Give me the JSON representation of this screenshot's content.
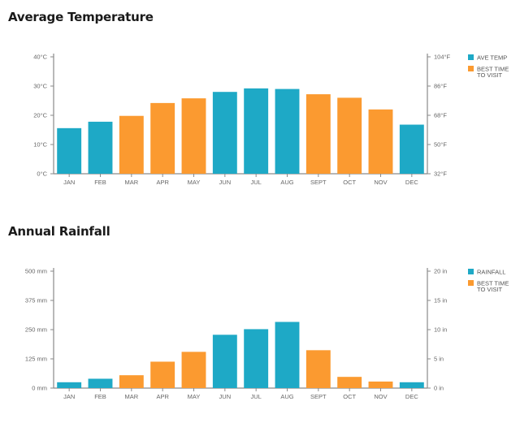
{
  "colors": {
    "primary": "#1ea9c6",
    "best": "#fb9a30",
    "axis": "#8a8a8a",
    "text": "#666666"
  },
  "chart_data": [
    {
      "type": "bar",
      "title": "Average Temperature",
      "categories": [
        "JAN",
        "FEB",
        "MAR",
        "APR",
        "MAY",
        "JUN",
        "JUL",
        "AUG",
        "SEPT",
        "OCT",
        "NOV",
        "DEC"
      ],
      "values": [
        15.6,
        17.8,
        19.8,
        24.2,
        25.8,
        28.0,
        29.2,
        29.0,
        27.2,
        26.0,
        22.0,
        16.8
      ],
      "best_time": [
        false,
        false,
        true,
        true,
        true,
        false,
        false,
        false,
        true,
        true,
        true,
        false
      ],
      "ylim": [
        0,
        40
      ],
      "left_ticks": [
        "40°C",
        "30°C",
        "20°C",
        "10°C",
        "0°C"
      ],
      "left_tick_values": [
        40,
        30,
        20,
        10,
        0
      ],
      "right_ticks": [
        "104°F",
        "86°F",
        "68°F",
        "50°F",
        "32°F"
      ],
      "legend": [
        {
          "label": "AVE TEMP",
          "color": "#1ea9c6"
        },
        {
          "label": "BEST TIME",
          "label2": "TO VISIT",
          "color": "#fb9a30"
        }
      ],
      "legend_position": "top-right",
      "grid": false
    },
    {
      "type": "bar",
      "title": "Annual Rainfall",
      "categories": [
        "JAN",
        "FEB",
        "MAR",
        "APR",
        "MAY",
        "JUN",
        "JUL",
        "AUG",
        "SEPT",
        "OCT",
        "NOV",
        "DEC"
      ],
      "values": [
        25,
        40,
        55,
        113,
        155,
        228,
        252,
        283,
        162,
        48,
        28,
        25
      ],
      "best_time": [
        false,
        false,
        true,
        true,
        true,
        false,
        false,
        false,
        true,
        true,
        true,
        false
      ],
      "ylim": [
        0,
        500
      ],
      "left_ticks": [
        "500 mm",
        "375 mm",
        "250 mm",
        "125 mm",
        "0 mm"
      ],
      "left_tick_values": [
        500,
        375,
        250,
        125,
        0
      ],
      "right_ticks": [
        "20 in",
        "15 in",
        "10 in",
        "5 in",
        "0 in"
      ],
      "legend": [
        {
          "label": "RAINFALL",
          "color": "#1ea9c6"
        },
        {
          "label": "BEST TIME",
          "label2": "TO VISIT",
          "color": "#fb9a30"
        }
      ],
      "legend_position": "top-right",
      "grid": false
    }
  ]
}
